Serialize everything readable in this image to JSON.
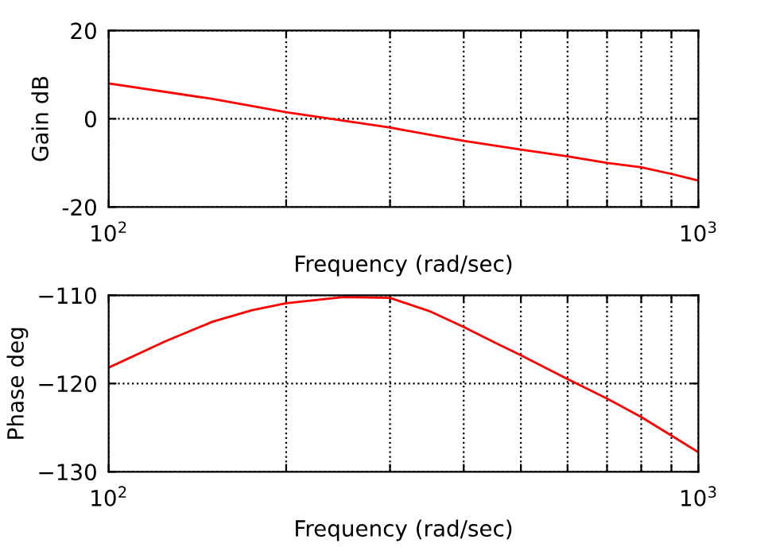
{
  "chart_data": [
    {
      "type": "line",
      "xlabel": "Frequency (rad/sec)",
      "ylabel": "Gain dB",
      "log": "x",
      "grid": true,
      "x": [
        100,
        150,
        200,
        300,
        400,
        500,
        600,
        700,
        800,
        900,
        1000
      ],
      "series": [
        {
          "color": "#ff0000",
          "values": [
            8,
            4.5,
            1.5,
            -2,
            -5,
            -7,
            -8.5,
            -10,
            -11,
            -12.5,
            -14
          ]
        }
      ],
      "xlim": [
        100,
        1000
      ],
      "ylim": [
        -20,
        20
      ],
      "yticks": [
        -20,
        0,
        20
      ],
      "xticks": [
        {
          "value": 100,
          "label": "10$^{2}$"
        },
        {
          "value": 200,
          "label": null
        },
        {
          "value": 300,
          "label": null
        },
        {
          "value": 400,
          "label": null
        },
        {
          "value": 500,
          "label": null
        },
        {
          "value": 600,
          "label": null
        },
        {
          "value": 700,
          "label": null
        },
        {
          "value": 800,
          "label": null
        },
        {
          "value": 900,
          "label": null
        },
        {
          "value": 1000,
          "label": "10$^{3}$"
        }
      ]
    },
    {
      "type": "line",
      "xlabel": "Frequency (rad/sec)",
      "ylabel": "Phase deg",
      "log": "x",
      "grid": true,
      "x": [
        100,
        125,
        150,
        175,
        200,
        250,
        300,
        350,
        400,
        450,
        500,
        600,
        700,
        800,
        900,
        1000
      ],
      "series": [
        {
          "color": "#ff0000",
          "values": [
            -118.2,
            -115.2,
            -113,
            -111.7,
            -110.9,
            -110.2,
            -110.3,
            -111.8,
            -113.6,
            -115.3,
            -116.8,
            -119.5,
            -121.7,
            -123.8,
            -125.9,
            -127.8
          ]
        }
      ],
      "xlim": [
        100,
        1000
      ],
      "ylim": [
        -130,
        -110
      ],
      "yticks": [
        {
          "value": -130,
          "label": "−130"
        },
        {
          "value": -120,
          "label": "−120"
        },
        {
          "value": -110,
          "label": "−110"
        }
      ],
      "xticks": [
        {
          "value": 100,
          "label": "10$^{2}$"
        },
        {
          "value": 200,
          "label": null
        },
        {
          "value": 300,
          "label": null
        },
        {
          "value": 400,
          "label": null
        },
        {
          "value": 500,
          "label": null
        },
        {
          "value": 600,
          "label": null
        },
        {
          "value": 700,
          "label": null
        },
        {
          "value": 800,
          "label": null
        },
        {
          "value": 900,
          "label": null
        },
        {
          "value": 1000,
          "label": "10$^{3}$"
        }
      ]
    }
  ]
}
